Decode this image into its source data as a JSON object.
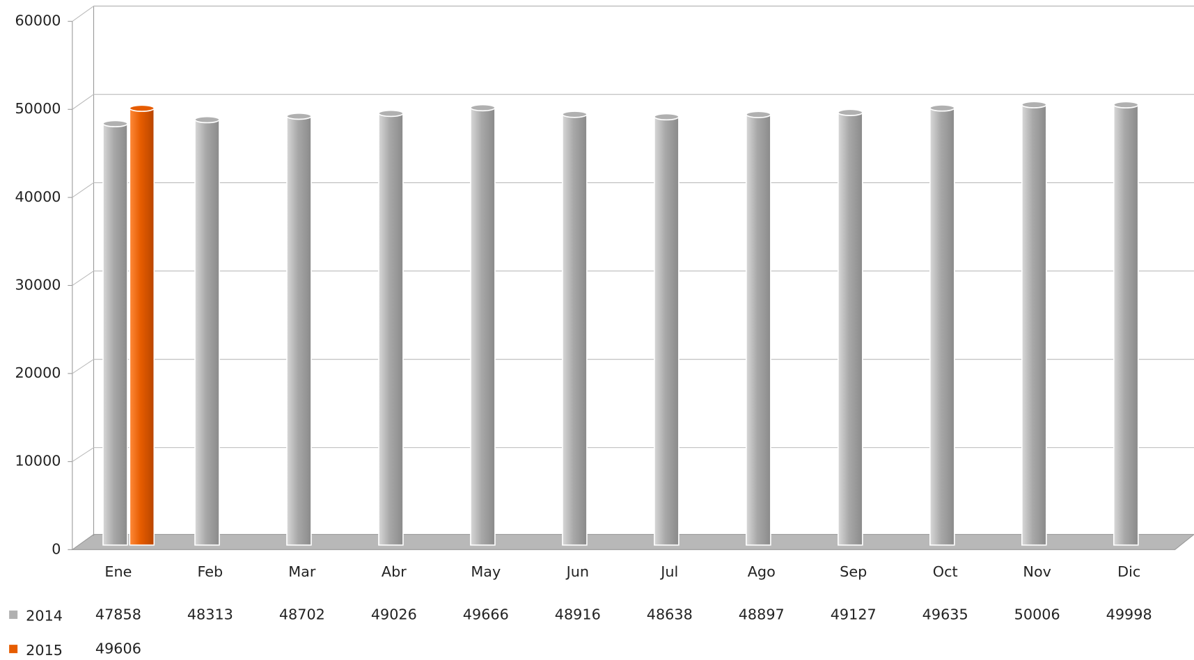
{
  "chart_data": {
    "type": "bar",
    "categories": [
      "Ene",
      "Feb",
      "Mar",
      "Abr",
      "May",
      "Jun",
      "Jul",
      "Ago",
      "Sep",
      "Oct",
      "Nov",
      "Dic"
    ],
    "series": [
      {
        "name": "2014",
        "color": "#b0b0b0",
        "values": [
          47858,
          48313,
          48702,
          49026,
          49666,
          48916,
          48638,
          48897,
          49127,
          49635,
          50006,
          49998
        ]
      },
      {
        "name": "2015",
        "color": "#e65c00",
        "values": [
          49606,
          null,
          null,
          null,
          null,
          null,
          null,
          null,
          null,
          null,
          null,
          null
        ]
      }
    ],
    "ylim": [
      0,
      60000
    ],
    "yticks": [
      0,
      10000,
      20000,
      30000,
      40000,
      50000,
      60000
    ],
    "grid": true
  }
}
